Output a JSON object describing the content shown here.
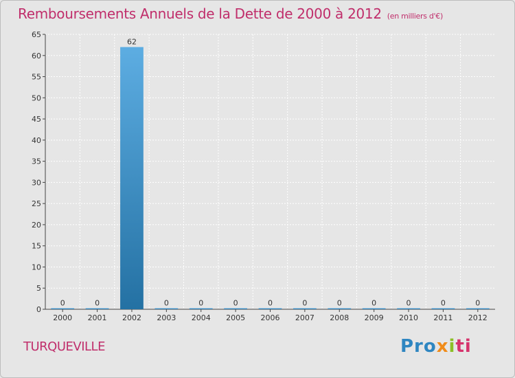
{
  "chart_data": {
    "type": "bar",
    "title": "Remboursements Annuels de la Dette de 2000 à 2012",
    "subtitle": "(en milliers d'€)",
    "categories": [
      "2000",
      "2001",
      "2002",
      "2003",
      "2004",
      "2005",
      "2006",
      "2007",
      "2008",
      "2009",
      "2010",
      "2011",
      "2012"
    ],
    "values": [
      0,
      0,
      62,
      0,
      0,
      0,
      0,
      0,
      0,
      0,
      0,
      0,
      0
    ],
    "ylim": [
      0,
      65
    ],
    "yticks": [
      0,
      5,
      10,
      15,
      20,
      25,
      30,
      35,
      40,
      45,
      50,
      55,
      60,
      65
    ],
    "xlabel": "",
    "ylabel": "",
    "grid": true,
    "bar_color_top": "#5dade2",
    "bar_color_bottom": "#2471a3"
  },
  "footer": {
    "commune": "TURQUEVILLE",
    "logo_parts": [
      "Pro",
      "x",
      "i",
      "ti"
    ]
  }
}
